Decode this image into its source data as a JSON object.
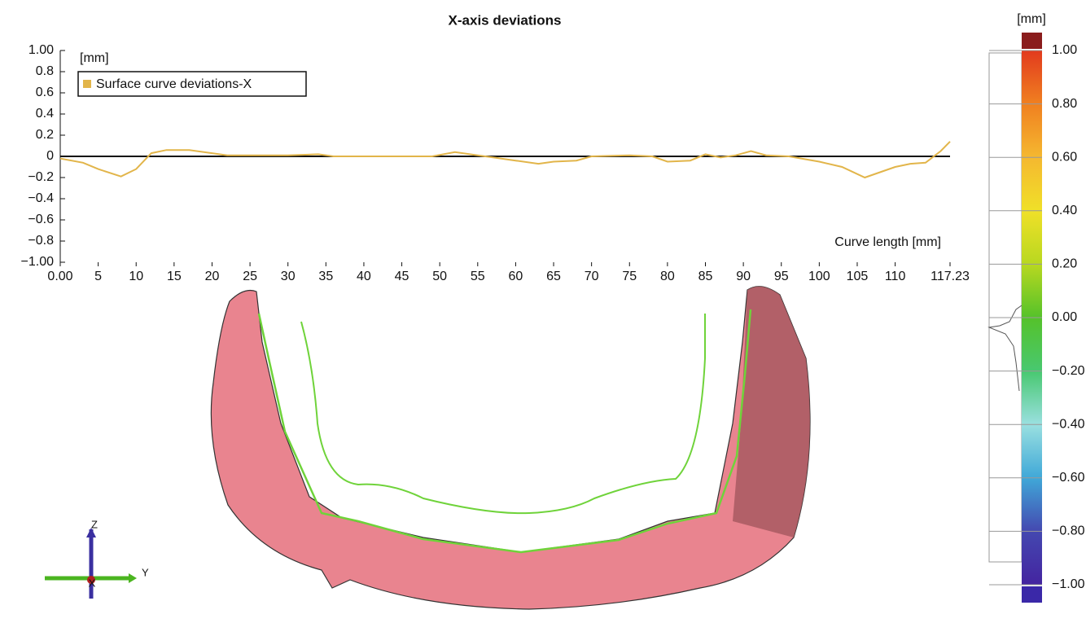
{
  "chart_data": [
    {
      "type": "line",
      "title": "X-axis deviations",
      "y_label": "[mm]",
      "x_label": "Curve length [mm]",
      "x": [
        0,
        3,
        5,
        8,
        10,
        12,
        14,
        17,
        20,
        22,
        25,
        30,
        34,
        36,
        45,
        49,
        52,
        55,
        57,
        60,
        63,
        65,
        68,
        70,
        75,
        78,
        80,
        83,
        85,
        87,
        89,
        91,
        93,
        96,
        100,
        103,
        106,
        108,
        110,
        112,
        114,
        116,
        117.23
      ],
      "series": [
        {
          "name": "Surface curve deviations-X",
          "color": "#e2b54a",
          "values": [
            -0.02,
            -0.06,
            -0.12,
            -0.19,
            -0.12,
            0.03,
            0.06,
            0.06,
            0.03,
            0.01,
            0.01,
            0.01,
            0.02,
            0.0,
            0.0,
            0.0,
            0.04,
            0.01,
            -0.01,
            -0.04,
            -0.07,
            -0.05,
            -0.04,
            0.0,
            0.01,
            0.0,
            -0.05,
            -0.04,
            0.02,
            -0.01,
            0.01,
            0.05,
            0.01,
            0.0,
            -0.05,
            -0.1,
            -0.2,
            -0.15,
            -0.1,
            -0.07,
            -0.06,
            0.05,
            0.14
          ]
        }
      ],
      "xlim": [
        0,
        117.23
      ],
      "xticks": [
        {
          "value": 0,
          "label": "0.00"
        },
        5,
        10,
        15,
        20,
        25,
        30,
        35,
        40,
        45,
        50,
        55,
        60,
        65,
        70,
        75,
        80,
        85,
        90,
        95,
        100,
        105,
        110,
        117.23
      ],
      "ylim": [
        -1,
        1
      ],
      "yticks": [
        {
          "value": 1,
          "label": "1.00"
        },
        0.8,
        0.6,
        0.4,
        0.2,
        0,
        {
          "value": -0.2,
          "label": "−0.2"
        },
        {
          "value": -0.4,
          "label": "−0.4"
        },
        {
          "value": -0.6,
          "label": "−0.6"
        },
        {
          "value": -0.8,
          "label": "−0.8"
        },
        {
          "value": -1,
          "label": "−1.00"
        }
      ],
      "legend": "top-left"
    },
    {
      "type": "colorbar",
      "unit": "[mm]",
      "ylim": [
        -1,
        1
      ],
      "yticks": [
        {
          "value": 1,
          "label": "1.00"
        },
        {
          "value": 0.8,
          "label": "0.80"
        },
        {
          "value": 0.6,
          "label": "0.60"
        },
        {
          "value": 0.4,
          "label": "0.40"
        },
        {
          "value": 0.2,
          "label": "0.20"
        },
        {
          "value": 0,
          "label": "0.00"
        },
        {
          "value": -0.2,
          "label": "−0.20"
        },
        {
          "value": -0.4,
          "label": "−0.40"
        },
        {
          "value": -0.6,
          "label": "−0.60"
        },
        {
          "value": -0.8,
          "label": "−0.80"
        },
        {
          "value": -1,
          "label": "−1.00"
        }
      ],
      "stops": [
        {
          "value": 1,
          "color": "#e23a1e"
        },
        {
          "value": 0.8,
          "color": "#f08020"
        },
        {
          "value": 0.6,
          "color": "#f5b830"
        },
        {
          "value": 0.4,
          "color": "#f0e028"
        },
        {
          "value": 0.2,
          "color": "#b8d820"
        },
        {
          "value": 0,
          "color": "#55c22a"
        },
        {
          "value": -0.2,
          "color": "#48c870"
        },
        {
          "value": -0.4,
          "color": "#9ae0e0"
        },
        {
          "value": -0.6,
          "color": "#40a8d8"
        },
        {
          "value": -0.8,
          "color": "#4448b0"
        },
        {
          "value": -1,
          "color": "#4424a0"
        }
      ],
      "over_color": "#8a1c1c",
      "under_color": "#3a28a8"
    }
  ],
  "triad": {
    "z": "Z",
    "y": "Y",
    "x": "X"
  }
}
